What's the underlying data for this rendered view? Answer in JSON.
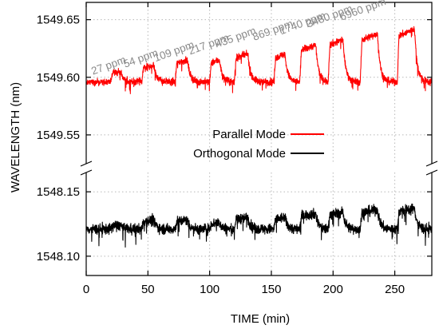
{
  "chart_data": {
    "type": "line",
    "xlabel": "TIME (min)",
    "ylabel": "WAVELENGTH (nm)",
    "xlim": [
      0,
      280
    ],
    "x_ticks": [
      0,
      50,
      100,
      150,
      200,
      250
    ],
    "axis_break": true,
    "upper_panel": {
      "ylim": [
        1549.525,
        1549.665
      ],
      "y_ticks": [
        "1549.55",
        "1549.60",
        "1549.65"
      ]
    },
    "lower_panel": {
      "ylim": [
        1548.085,
        1548.165
      ],
      "y_ticks": [
        "1548.10",
        "1548.15"
      ]
    },
    "grid": true,
    "legend_position": "center",
    "series": [
      {
        "name": "Parallel Mode",
        "color": "#ff0000",
        "panel": "upper",
        "baseline": 1549.596,
        "noise": 0.006,
        "pulse_windows": [
          [
            20,
            28
          ],
          [
            45,
            55
          ],
          [
            72,
            82
          ],
          [
            100,
            108
          ],
          [
            120,
            131
          ],
          [
            152,
            161
          ],
          [
            173,
            186
          ],
          [
            196,
            208
          ],
          [
            222,
            236
          ],
          [
            252,
            266
          ]
        ],
        "pulse_peaks": [
          1549.605,
          1549.61,
          1549.615,
          1549.615,
          1549.62,
          1549.62,
          1549.628,
          1549.633,
          1549.638,
          1549.642
        ]
      },
      {
        "name": "Orthogonal Mode",
        "color": "#000000",
        "panel": "lower",
        "baseline": 1548.121,
        "noise": 0.008,
        "pulse_windows": [
          [
            20,
            28
          ],
          [
            45,
            55
          ],
          [
            72,
            82
          ],
          [
            100,
            108
          ],
          [
            120,
            131
          ],
          [
            152,
            161
          ],
          [
            173,
            186
          ],
          [
            196,
            208
          ],
          [
            222,
            236
          ],
          [
            252,
            266
          ]
        ],
        "pulse_peaks": [
          1548.124,
          1548.128,
          1548.128,
          1548.126,
          1548.13,
          1548.13,
          1548.133,
          1548.134,
          1548.136,
          1548.137
        ]
      }
    ],
    "annotations": [
      {
        "text": "27 ppm",
        "x": 23
      },
      {
        "text": "54 ppm",
        "x": 49
      },
      {
        "text": "109 ppm",
        "x": 76
      },
      {
        "text": "217 ppm",
        "x": 104
      },
      {
        "text": "435 ppm",
        "x": 126
      },
      {
        "text": "869 ppm",
        "x": 156
      },
      {
        "text": "1740 ppm",
        "x": 180
      },
      {
        "text": "3480 ppm",
        "x": 202
      },
      {
        "text": "6960 ppm",
        "x": 229
      }
    ]
  }
}
